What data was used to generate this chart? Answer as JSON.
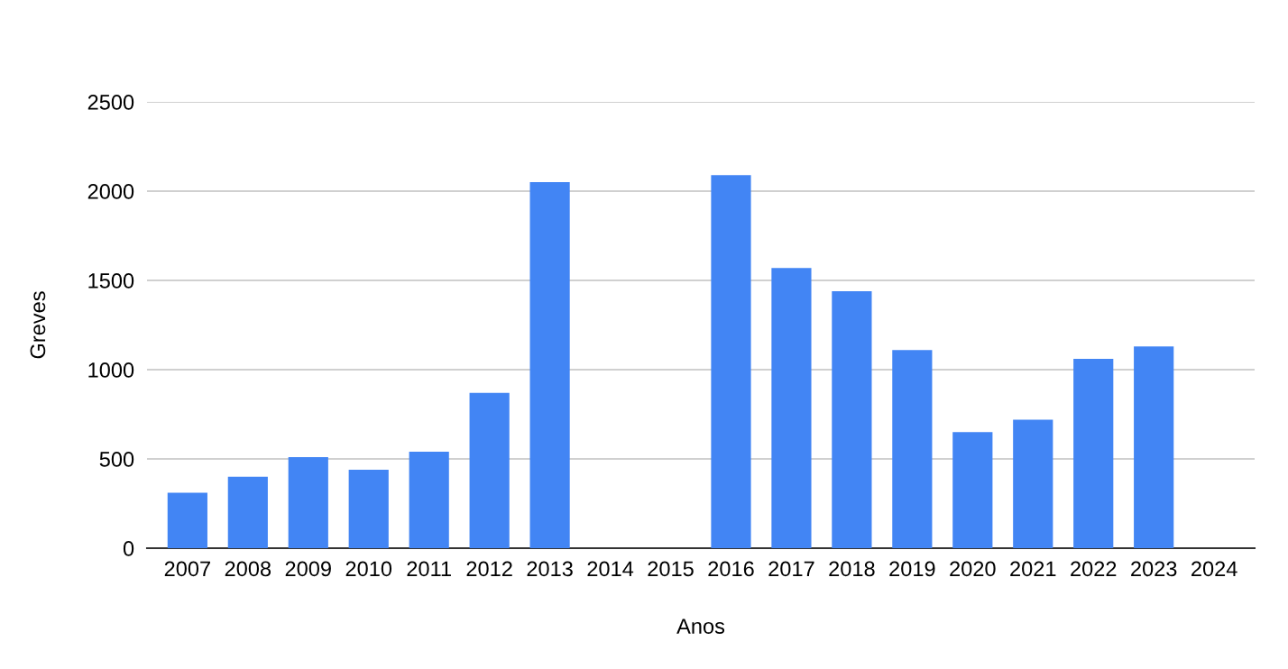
{
  "chart_data": {
    "type": "bar",
    "xlabel": "Anos",
    "ylabel": "Greves",
    "categories": [
      "2007",
      "2008",
      "2009",
      "2010",
      "2011",
      "2012",
      "2013",
      "2014",
      "2015",
      "2016",
      "2017",
      "2018",
      "2019",
      "2020",
      "2021",
      "2022",
      "2023",
      "2024"
    ],
    "values": [
      310,
      400,
      510,
      440,
      540,
      870,
      2050,
      null,
      null,
      2090,
      1570,
      1440,
      1110,
      650,
      720,
      1060,
      1130,
      null
    ],
    "color": "#4285f4",
    "ylim": [
      0,
      2500
    ],
    "yticks": [
      0,
      500,
      1000,
      1500,
      2000,
      2500
    ],
    "grid": "y",
    "legend": false
  }
}
